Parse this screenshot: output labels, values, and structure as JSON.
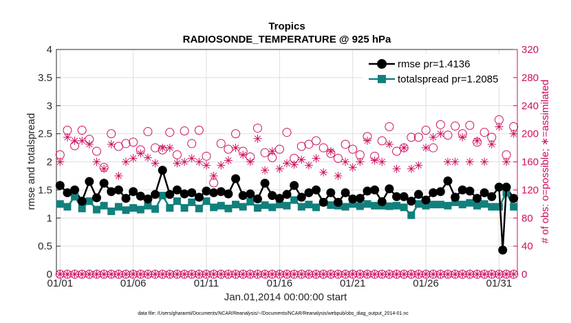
{
  "chart_data": {
    "type": "line",
    "title": "Tropics",
    "subtitle": "RADIOSONDE_TEMPERATURE @ 925 hPa",
    "xlabel": "Jan.01,2014 00:00:00 start",
    "ylabel_left": "rmse and totalspread",
    "ylabel_right": "# of obs: o=possible; ∗=assimilated",
    "footnote": "data file: /Users/gharamti/Documents/NCAR/Reanalysis/~/Documents/NCAR/Reanalysis/webpub/obs_diag_output_2014-01.nc",
    "x_tick_labels": [
      "01/01",
      "01/06",
      "01/11",
      "01/16",
      "01/21",
      "01/26",
      "01/31"
    ],
    "x_tick_days": [
      0,
      5,
      10,
      15,
      20,
      25,
      30
    ],
    "xlim": [
      -0.25,
      31.25
    ],
    "ylim_left": [
      0,
      4
    ],
    "yticks_left": [
      "0",
      "0.5",
      "1",
      "1.5",
      "2",
      "2.5",
      "3",
      "3.5",
      "4"
    ],
    "ylim_right": [
      0,
      320
    ],
    "yticks_right": [
      "0",
      "40",
      "80",
      "120",
      "160",
      "200",
      "240",
      "280",
      "320"
    ],
    "grid": true,
    "legend_position": "top-right",
    "colors": {
      "rmse": "#000000",
      "totalspread": "#11807d",
      "obs": "#cc0e5f",
      "grid": "#dedede"
    },
    "x": [
      0.0,
      0.5,
      1.0,
      1.5,
      2.0,
      2.5,
      3.0,
      3.5,
      4.0,
      4.5,
      5.0,
      5.5,
      6.0,
      6.5,
      7.0,
      7.5,
      8.0,
      8.5,
      9.0,
      9.5,
      10.0,
      10.5,
      11.0,
      11.5,
      12.0,
      12.5,
      13.0,
      13.5,
      14.0,
      14.5,
      15.0,
      15.5,
      16.0,
      16.5,
      17.0,
      17.5,
      18.0,
      18.5,
      19.0,
      19.5,
      20.0,
      20.5,
      21.0,
      21.5,
      22.0,
      22.5,
      23.0,
      23.5,
      24.0,
      24.5,
      25.0,
      25.5,
      26.0,
      26.5,
      27.0,
      27.5,
      28.0,
      28.5,
      29.0,
      29.5,
      30.0,
      30.5,
      31.0
    ],
    "series": [
      {
        "name": "rmse pr=1.4136",
        "axis": "left",
        "marker": "circle",
        "values": [
          1.58,
          1.45,
          1.5,
          1.3,
          1.65,
          1.36,
          1.62,
          1.47,
          1.5,
          1.35,
          1.47,
          1.39,
          1.34,
          1.42,
          1.85,
          1.42,
          1.5,
          1.43,
          1.45,
          1.37,
          1.48,
          1.45,
          1.47,
          1.43,
          1.7,
          1.4,
          1.43,
          1.34,
          1.62,
          1.4,
          1.35,
          1.42,
          1.58,
          1.37,
          1.45,
          1.5,
          1.28,
          1.45,
          1.28,
          1.45,
          1.34,
          1.35,
          1.48,
          1.5,
          1.29,
          1.52,
          1.38,
          1.38,
          1.3,
          1.42,
          1.32,
          1.45,
          1.47,
          1.66,
          1.37,
          1.5,
          1.48,
          1.35,
          1.45,
          1.38,
          1.55,
          1.55,
          1.35
        ]
      },
      {
        "name": "totalspread pr=1.2085",
        "axis": "left",
        "marker": "square",
        "values": [
          1.25,
          1.2,
          1.38,
          1.17,
          1.3,
          1.15,
          1.22,
          1.12,
          1.2,
          1.14,
          1.18,
          1.15,
          1.22,
          1.16,
          1.4,
          1.18,
          1.3,
          1.18,
          1.28,
          1.17,
          1.3,
          1.19,
          1.22,
          1.17,
          1.24,
          1.2,
          1.29,
          1.18,
          1.23,
          1.19,
          1.24,
          1.22,
          1.32,
          1.2,
          1.24,
          1.19,
          1.28,
          1.23,
          1.22,
          1.2,
          1.25,
          1.21,
          1.25,
          1.22,
          1.22,
          1.21,
          1.22,
          1.19,
          1.05,
          1.25,
          1.22,
          1.24,
          1.24,
          1.22,
          1.28,
          1.24,
          1.27,
          1.22,
          1.25,
          1.2,
          1.2,
          1.45,
          1.2
        ]
      },
      {
        "name": "obs possible",
        "axis": "right",
        "marker": "open-circle",
        "values": [
          170,
          205,
          183,
          205,
          192,
          175,
          152,
          200,
          182,
          186,
          188,
          177,
          203,
          180,
          177,
          202,
          170,
          204,
          186,
          205,
          168,
          130,
          186,
          178,
          200,
          175,
          167,
          208,
          173,
          166,
          178,
          202,
          165,
          182,
          185,
          190,
          180,
          172,
          165,
          185,
          178,
          170,
          196,
          168,
          190,
          210,
          175,
          180,
          195,
          195,
          205,
          180,
          213,
          198,
          211,
          200,
          212,
          188,
          202,
          195,
          220,
          170,
          210
        ]
      },
      {
        "name": "obs assimilated",
        "axis": "right",
        "marker": "asterisk",
        "values": [
          160,
          195,
          190,
          190,
          185,
          160,
          150,
          185,
          140,
          160,
          165,
          172,
          166,
          158,
          180,
          180,
          158,
          160,
          165,
          160,
          155,
          140,
          155,
          162,
          180,
          170,
          160,
          193,
          148,
          175,
          150,
          158,
          156,
          163,
          155,
          165,
          145,
          175,
          140,
          160,
          152,
          160,
          190,
          162,
          160,
          185,
          150,
          180,
          150,
          155,
          180,
          195,
          200,
          160,
          160,
          195,
          160,
          190,
          160,
          185,
          210,
          160,
          200
        ]
      }
    ],
    "obs_zero_row_count": 63
  }
}
